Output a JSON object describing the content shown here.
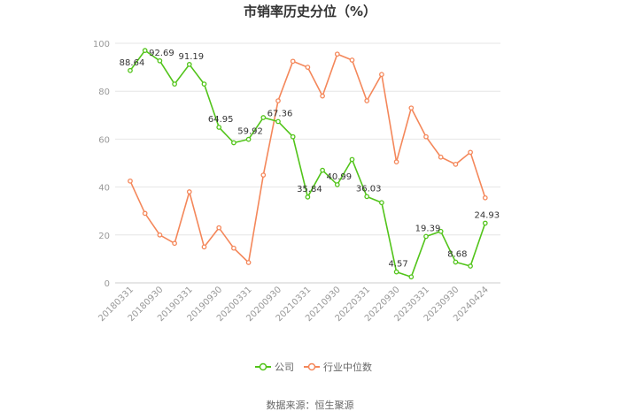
{
  "chart_data": {
    "type": "line",
    "title": "市销率历史分位（%）",
    "x": [
      "20180331",
      "",
      "20180930",
      "",
      "20190331",
      "",
      "20190930",
      "",
      "20200331",
      "",
      "20200930",
      "",
      "20210331",
      "",
      "20210930",
      "",
      "20220331",
      "",
      "20220930",
      "",
      "20230331",
      "",
      "20230930",
      "",
      "20240424"
    ],
    "x_tick_labels": [
      "20180331",
      "20180930",
      "20190331",
      "20190930",
      "20200331",
      "20200930",
      "20210331",
      "20210930",
      "20220331",
      "20220930",
      "20230331",
      "20230930",
      "20240424"
    ],
    "ylim": [
      0,
      100
    ],
    "y_ticks": [
      0,
      20,
      40,
      60,
      80,
      100
    ],
    "grid": true,
    "legend_position": "bottom",
    "series": [
      {
        "name": "公司",
        "color": "#52c41a",
        "values": [
          88.64,
          97,
          92.69,
          83,
          91.19,
          83,
          64.95,
          58.5,
          59.92,
          69,
          67.36,
          61,
          35.84,
          47,
          40.99,
          51.5,
          36.03,
          33.5,
          4.57,
          2.5,
          19.39,
          21.5,
          8.68,
          7,
          24.93
        ],
        "labels": {
          "0": "88.64",
          "2": "92.69",
          "4": "91.19",
          "6": "64.95",
          "8": "59.92",
          "10": "67.36",
          "12": "35.84",
          "14": "40.99",
          "16": "36.03",
          "18": "4.57",
          "20": "19.39",
          "22": "8.68",
          "24": "24.93"
        }
      },
      {
        "name": "行业中位数",
        "color": "#f4875a",
        "values": [
          42.5,
          29,
          20,
          16.5,
          38,
          15,
          23,
          14.5,
          8.5,
          45,
          76,
          92.5,
          90,
          78,
          95.5,
          93,
          76,
          87,
          50.5,
          73,
          61,
          52.5,
          49.5,
          54.5,
          35.5
        ]
      }
    ],
    "source": "数据来源：恒生聚源"
  }
}
